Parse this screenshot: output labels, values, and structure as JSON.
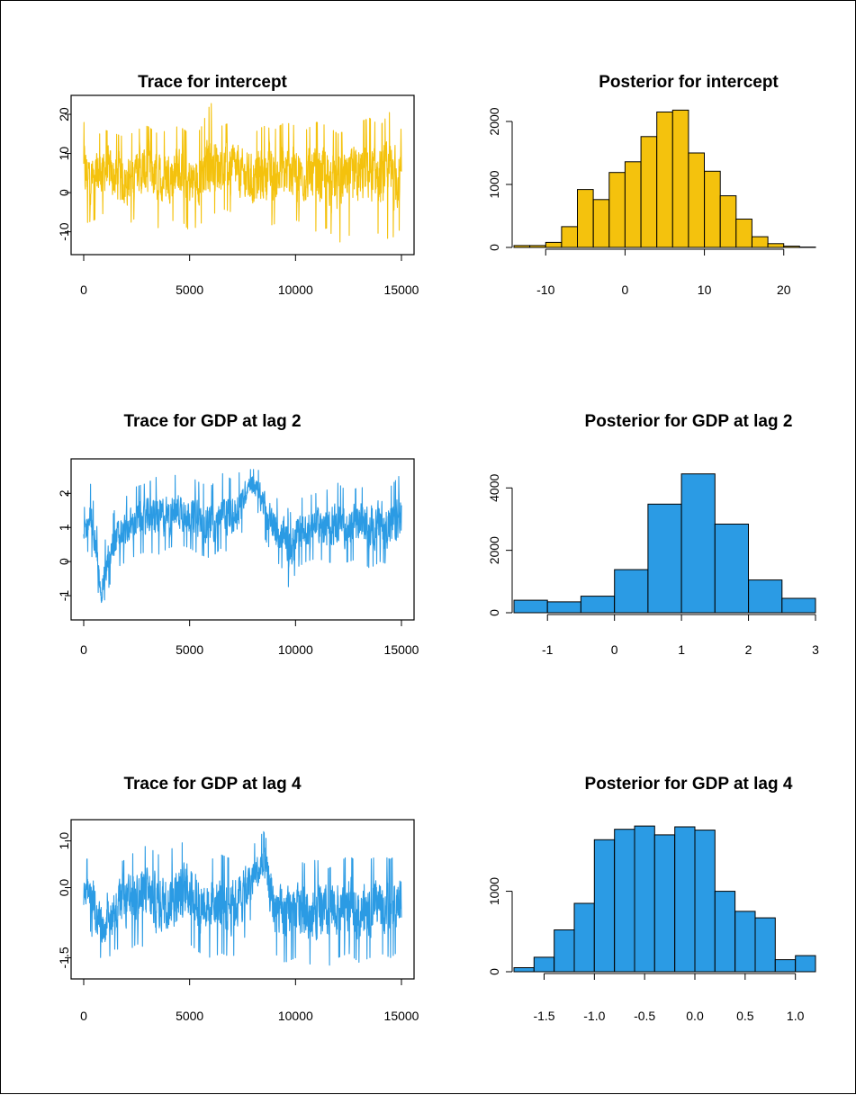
{
  "colors": {
    "gold": "#F4C20D",
    "blue": "#2B9BE4",
    "bar_outline": "#000000"
  },
  "chart_data": [
    {
      "type": "line",
      "title": "Trace for intercept",
      "color": "#F4C20D",
      "xlim": [
        0,
        15000
      ],
      "ylim": [
        -14,
        23
      ],
      "xticks": [
        0,
        5000,
        10000,
        15000
      ],
      "xtick_labels": [
        "0",
        "5000",
        "10000",
        "15000"
      ],
      "yticks": [
        -10,
        0,
        10,
        20
      ],
      "ytick_labels": [
        "-10",
        "0",
        "10",
        "20"
      ],
      "series_profile": {
        "x": [
          0,
          500,
          1000,
          1500,
          2000,
          2500,
          3000,
          3500,
          4000,
          4500,
          5000,
          5500,
          6000,
          6500,
          7000,
          7500,
          8000,
          8500,
          9000,
          9500,
          10000,
          10500,
          11000,
          11500,
          12000,
          12500,
          13000,
          13500,
          14000,
          14500,
          15000
        ],
        "center": [
          6,
          5,
          7,
          4,
          3,
          5,
          6,
          4,
          5,
          6,
          3,
          4,
          6,
          7,
          8,
          5,
          4,
          6,
          5,
          5,
          6,
          4,
          5,
          6,
          3,
          4,
          5,
          6,
          4,
          3,
          5
        ],
        "low": [
          -8,
          -7,
          -5,
          -8,
          -9,
          -6,
          -7,
          -9,
          -8,
          -6,
          -10,
          -8,
          -6,
          -4,
          -5,
          -8,
          -10,
          -9,
          -8,
          -9,
          -7,
          -8,
          -10,
          -9,
          -13,
          -11,
          -10,
          -8,
          -11,
          -12,
          -9
        ],
        "high": [
          18,
          14,
          16,
          15,
          14,
          16,
          17,
          15,
          16,
          17,
          15,
          16,
          23,
          17,
          18,
          16,
          15,
          17,
          16,
          18,
          17,
          16,
          18,
          17,
          15,
          16,
          18,
          19,
          17,
          21,
          16
        ]
      }
    },
    {
      "type": "bar",
      "title": "Posterior for intercept",
      "color": "#F4C20D",
      "xlim": [
        -14,
        24
      ],
      "ylim": [
        0,
        2300
      ],
      "xticks": [
        -10,
        0,
        10,
        20
      ],
      "xtick_labels": [
        "-10",
        "0",
        "10",
        "20"
      ],
      "yticks": [
        0,
        1000,
        2000
      ],
      "ytick_labels": [
        "0",
        "1000",
        "2000"
      ],
      "bin_edges": [
        -14,
        -12,
        -10,
        -8,
        -6,
        -4,
        -2,
        0,
        2,
        4,
        6,
        8,
        10,
        12,
        14,
        16,
        18,
        20,
        22,
        24
      ],
      "values": [
        30,
        30,
        80,
        330,
        920,
        760,
        1190,
        1360,
        1760,
        2150,
        2180,
        1500,
        1210,
        820,
        450,
        170,
        60,
        20,
        5
      ]
    },
    {
      "type": "line",
      "title": "Trace for GDP at lag 2",
      "color": "#2B9BE4",
      "xlim": [
        0,
        15000
      ],
      "ylim": [
        -1.5,
        2.8
      ],
      "xticks": [
        0,
        5000,
        10000,
        15000
      ],
      "xtick_labels": [
        "0",
        "5000",
        "10000",
        "15000"
      ],
      "yticks": [
        -1,
        0,
        1,
        2
      ],
      "ytick_labels": [
        "-1",
        "0",
        "1",
        "2"
      ],
      "series_profile": {
        "x": [
          0,
          300,
          600,
          800,
          1000,
          1500,
          2000,
          2500,
          3000,
          3500,
          4000,
          4500,
          5000,
          5500,
          6000,
          6500,
          7000,
          7500,
          7800,
          8200,
          8600,
          9000,
          9500,
          9800,
          10000,
          10500,
          11000,
          11500,
          12000,
          12500,
          13000,
          13500,
          14000,
          14500,
          15000
        ],
        "center": [
          0.8,
          1.2,
          0.2,
          -1.2,
          -0.3,
          0.6,
          0.9,
          1.1,
          1.2,
          1.3,
          1.2,
          1.4,
          1.3,
          1.1,
          1.0,
          1.3,
          1.1,
          1.8,
          2.4,
          2.2,
          1.6,
          0.8,
          0.6,
          0.5,
          0.8,
          1.0,
          1.1,
          1.0,
          1.2,
          1.0,
          1.1,
          1.0,
          1.2,
          1.0,
          1.1
        ],
        "low": [
          0.1,
          0.4,
          -0.5,
          -1.45,
          -1.1,
          -0.2,
          0.0,
          0.2,
          0.3,
          0.2,
          0.4,
          0.5,
          0.4,
          0.2,
          0.1,
          0.4,
          0.2,
          0.9,
          1.9,
          1.5,
          0.6,
          0.1,
          -0.3,
          -1.1,
          -0.2,
          0.0,
          0.1,
          0.0,
          -0.1,
          0.0,
          0.1,
          -0.2,
          0.0,
          -0.1,
          0.2
        ],
        "high": [
          1.5,
          2.35,
          1.2,
          -0.4,
          0.6,
          1.6,
          1.9,
          2.2,
          2.3,
          2.5,
          2.4,
          2.6,
          2.5,
          2.3,
          2.2,
          2.6,
          2.4,
          2.7,
          2.7,
          2.7,
          2.5,
          1.9,
          1.7,
          1.4,
          1.8,
          1.9,
          2.0,
          2.1,
          2.3,
          2.0,
          2.2,
          2.1,
          2.4,
          2.2,
          2.6
        ]
      }
    },
    {
      "type": "bar",
      "title": "Posterior for GDP at lag 2",
      "color": "#2B9BE4",
      "xlim": [
        -1.5,
        3.0
      ],
      "ylim": [
        0,
        4700
      ],
      "xticks": [
        -1,
        0,
        1,
        2,
        3
      ],
      "xtick_labels": [
        "-1",
        "0",
        "1",
        "2",
        "3"
      ],
      "yticks": [
        0,
        2000,
        4000
      ],
      "ytick_labels": [
        "0",
        "2000",
        "4000"
      ],
      "bin_edges": [
        -1.5,
        -1.0,
        -0.5,
        0.0,
        0.5,
        1.0,
        1.5,
        2.0,
        2.5,
        3.0
      ],
      "values": [
        400,
        350,
        530,
        1380,
        3480,
        4450,
        2840,
        1050,
        460
      ]
    },
    {
      "type": "line",
      "title": "Trace for GDP at lag 4",
      "color": "#2B9BE4",
      "xlim": [
        0,
        15000
      ],
      "ylim": [
        -1.8,
        1.3
      ],
      "xticks": [
        0,
        5000,
        10000,
        15000
      ],
      "xtick_labels": [
        "0",
        "5000",
        "10000",
        "15000"
      ],
      "yticks": [
        -1.5,
        0.0,
        1.0
      ],
      "ytick_labels": [
        "-1.5",
        "0.0",
        "1.0"
      ],
      "series_profile": {
        "x": [
          0,
          300,
          600,
          1000,
          1500,
          2000,
          2500,
          3000,
          3500,
          4000,
          4500,
          5000,
          5500,
          6000,
          6500,
          7000,
          7500,
          8000,
          8500,
          9000,
          9500,
          10000,
          10500,
          11000,
          11500,
          12000,
          12500,
          13000,
          13500,
          14000,
          14500,
          15000
        ],
        "center": [
          -0.2,
          0.0,
          -0.5,
          -0.9,
          -0.4,
          -0.3,
          -0.2,
          -0.1,
          -0.3,
          -0.2,
          -0.1,
          0.0,
          -0.2,
          -0.3,
          -0.2,
          -0.3,
          -0.1,
          0.3,
          0.5,
          -0.4,
          -0.5,
          -0.3,
          -0.4,
          -0.3,
          -0.5,
          -0.4,
          -0.3,
          -0.5,
          -0.4,
          -0.3,
          -0.4,
          -0.5
        ],
        "low": [
          -1.0,
          -0.9,
          -1.4,
          -1.6,
          -1.3,
          -1.4,
          -1.2,
          -1.3,
          -1.5,
          -1.4,
          -1.3,
          -1.2,
          -1.4,
          -1.5,
          -1.4,
          -1.5,
          -1.2,
          -0.5,
          -0.4,
          -1.4,
          -1.6,
          -1.5,
          -1.6,
          -1.7,
          -1.7,
          -1.5,
          -1.4,
          -1.6,
          -1.5,
          -1.4,
          -1.5,
          -1.3
        ],
        "high": [
          0.4,
          0.8,
          0.2,
          -0.3,
          0.5,
          0.6,
          0.8,
          0.9,
          0.7,
          0.8,
          0.9,
          1.1,
          0.8,
          0.6,
          0.7,
          0.6,
          0.8,
          0.9,
          1.2,
          0.5,
          0.3,
          0.6,
          0.5,
          0.6,
          0.4,
          0.5,
          0.7,
          0.5,
          0.6,
          0.7,
          0.6,
          0.9
        ]
      }
    },
    {
      "type": "bar",
      "title": "Posterior for GDP at lag 4",
      "color": "#2B9BE4",
      "xlim": [
        -1.8,
        1.2
      ],
      "ylim": [
        0,
        1800
      ],
      "xticks": [
        -1.5,
        -1.0,
        -0.5,
        0.0,
        0.5,
        1.0
      ],
      "xtick_labels": [
        "-1.5",
        "-1.0",
        "-0.5",
        "0.0",
        "0.5",
        "1.0"
      ],
      "yticks": [
        0,
        1000
      ],
      "ytick_labels": [
        "0",
        "1000"
      ],
      "bin_edges": [
        -1.8,
        -1.6,
        -1.4,
        -1.2,
        -1.0,
        -0.8,
        -0.6,
        -0.4,
        -0.2,
        0.0,
        0.2,
        0.4,
        0.6,
        0.8,
        1.0,
        1.2
      ],
      "values": [
        50,
        180,
        520,
        850,
        1640,
        1770,
        1810,
        1700,
        1800,
        1760,
        1000,
        750,
        670,
        150,
        200
      ]
    }
  ]
}
